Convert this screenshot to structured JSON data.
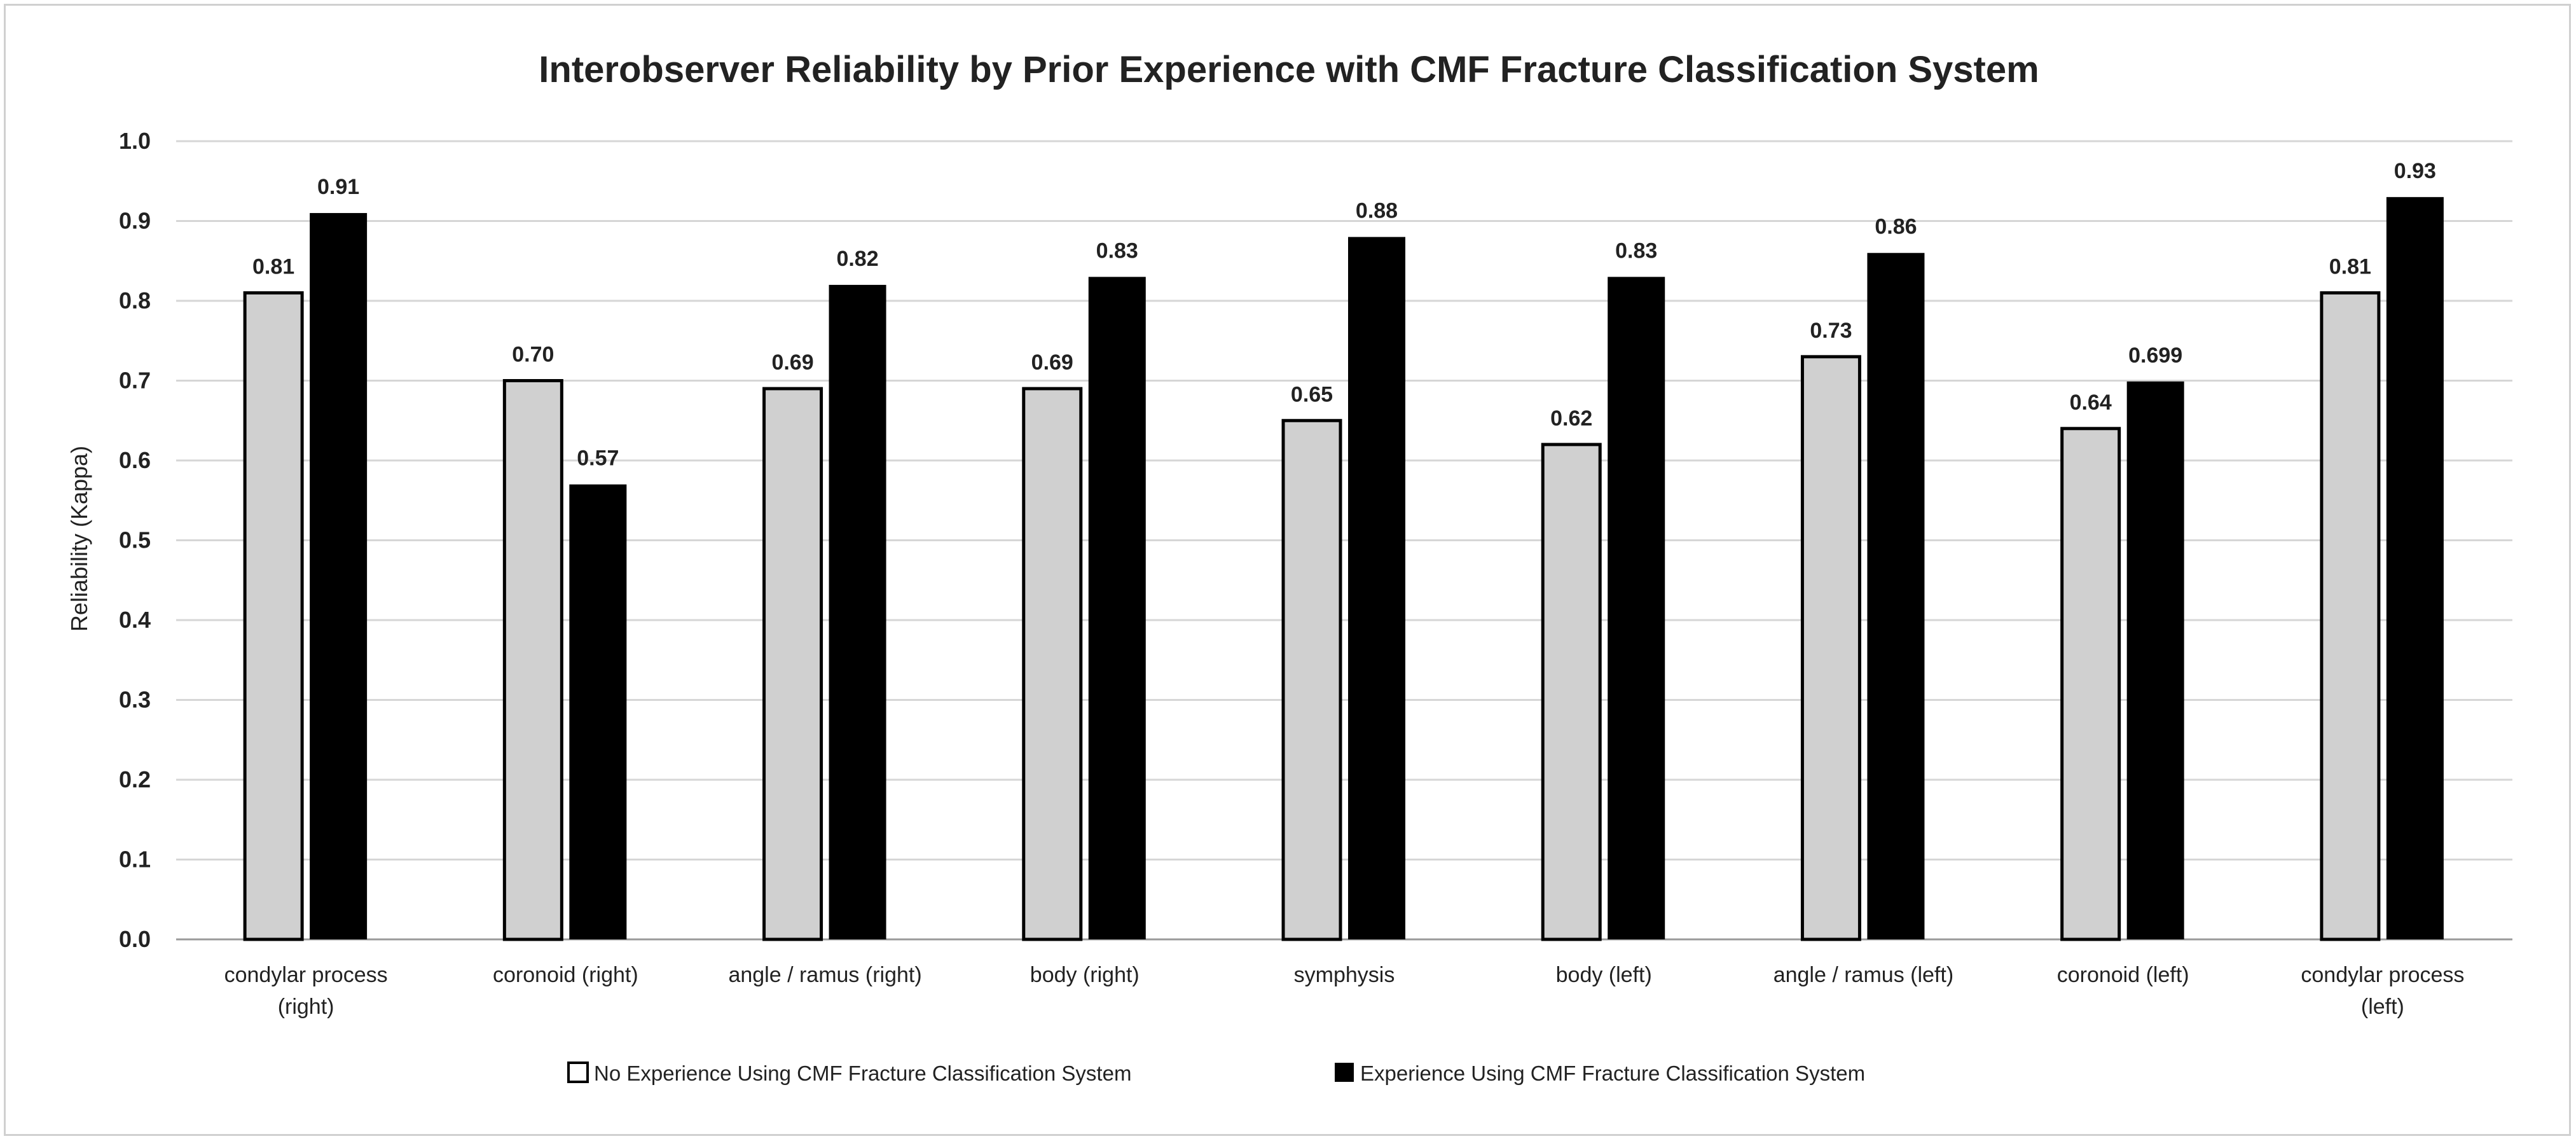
{
  "chart_data": {
    "type": "bar",
    "title": "Interobserver Reliability by Prior Experience with CMF Fracture Classification System",
    "xlabel": "",
    "ylabel": "Reliability (Kappa)",
    "ylim": [
      0,
      1.0
    ],
    "yticks": [
      "0.0",
      "0.1",
      "0.2",
      "0.3",
      "0.4",
      "0.5",
      "0.6",
      "0.7",
      "0.8",
      "0.9",
      "1.0"
    ],
    "grid": true,
    "legend_position": "bottom",
    "categories": [
      [
        "condylar process",
        "(right)"
      ],
      [
        "coronoid (right)"
      ],
      [
        "angle / ramus (right)"
      ],
      [
        "body (right)"
      ],
      [
        "symphysis"
      ],
      [
        "body (left)"
      ],
      [
        "angle / ramus (left)"
      ],
      [
        "coronoid (left)"
      ],
      [
        "condylar process",
        "(left)"
      ]
    ],
    "series": [
      {
        "name": "No Experience Using CMF Fracture Classification System",
        "color": "#d0d0d0",
        "values": [
          0.81,
          0.7,
          0.69,
          0.69,
          0.65,
          0.62,
          0.73,
          0.64,
          0.81
        ],
        "labels": [
          "0.81",
          "0.70",
          "0.69",
          "0.69",
          "0.65",
          "0.62",
          "0.73",
          "0.64",
          "0.81"
        ]
      },
      {
        "name": "Experience Using CMF Fracture Classification System",
        "color": "#000000",
        "values": [
          0.91,
          0.57,
          0.82,
          0.83,
          0.88,
          0.83,
          0.86,
          0.699,
          0.93
        ],
        "labels": [
          "0.91",
          "0.57",
          "0.82",
          "0.83",
          "0.88",
          "0.83",
          "0.86",
          "0.699",
          "0.93"
        ]
      }
    ]
  }
}
